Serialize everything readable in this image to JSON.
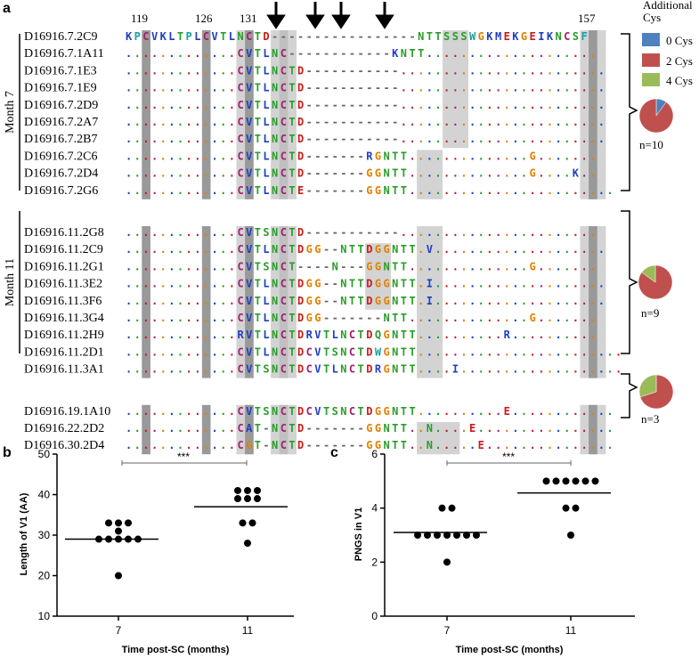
{
  "panel_labels": {
    "a": "a",
    "b": "b",
    "c": "c"
  },
  "positions": [
    "119",
    "126",
    "131",
    "157"
  ],
  "legend": {
    "title_line1": "Additional",
    "title_line2": "Cys",
    "items": [
      {
        "label": "0 Cys",
        "color": "#4f81bd"
      },
      {
        "label": "2 Cys",
        "color": "#c0504d"
      },
      {
        "label": "4 Cys",
        "color": "#9bbb59"
      }
    ]
  },
  "groups": [
    {
      "label": "Month 7",
      "n_label": "n=10",
      "pie": [
        0.1,
        0.9,
        0.0
      ],
      "rows": [
        {
          "name": "D16916.7.2C9",
          "seq": "KPCVKLTPLCVTLNCTD-----------------NTTSSSWGKMEKGEIKNCSF"
        },
        {
          "name": "D16916.7.1A11",
          "seq": ".............CVTLNC------------KNTT...................."
        },
        {
          "name": "D16916.7.1E3",
          "seq": ".............CVTLNCTD-----------........................"
        },
        {
          "name": "D16916.7.1E9",
          "seq": ".............CVTLNCTD-----------........................"
        },
        {
          "name": "D16916.7.2D9",
          "seq": ".............CVTLNCTD-----------........................"
        },
        {
          "name": "D16916.7.2A7",
          "seq": ".............CVTLNCTD-----------........................"
        },
        {
          "name": "D16916.7.2B7",
          "seq": ".............CVTLNCTD-----------........................"
        },
        {
          "name": "D16916.7.2C6",
          "seq": ".............CVTLNCTD-------RGNTT..............G......."
        },
        {
          "name": "D16916.7.2D4",
          "seq": ".............CVTLNCTD-------GGNTT..............G....K.."
        },
        {
          "name": "D16916.7.2G6",
          "seq": ".............CVTLNCTE-------GGNTT........................"
        }
      ]
    },
    {
      "label": "Month 11",
      "n_label": "n=9",
      "pie": [
        0.0,
        0.85,
        0.15
      ],
      "rows": [
        {
          "name": "D16916.11.2G8",
          "seq": ".............CVTSNCTD-----------......................."
        },
        {
          "name": "D16916.11.2C9",
          "seq": ".............CVTLNCTDGG--NTTDGGNTT.V...................."
        },
        {
          "name": "D16916.11.2G1",
          "seq": ".............CVTSNCT----N---GGNTT..............G......."
        },
        {
          "name": "D16916.11.3E2",
          "seq": ".............CVTLNCTDGG--NTTDGGNTT.I...................."
        },
        {
          "name": "D16916.11.3F6",
          "seq": ".............CVTLNCTDGG--NTTDGGNTT.I...................."
        },
        {
          "name": "D16916.11.3G4",
          "seq": ".............CVTLNCTDGG-------NTT..............G......."
        },
        {
          "name": "D16916.11.2H9",
          "seq": ".............RVTLNCTDRVTLNCTDQGNTT..........R.........."
        },
        {
          "name": "D16916.11.2D1",
          "seq": ".............CVTLNCTDCVTSNCTDWGNTT........................"
        },
        {
          "name": "D16916.11.3A1",
          "seq": ".............CVTSNCTDCVTLNCTDRGNTT....I..................."
        }
      ]
    },
    {
      "label": "",
      "n_label": "n=3",
      "pie": [
        0.0,
        0.7,
        0.3
      ],
      "rows": [
        {
          "name": "D16916.19.1A10",
          "seq": ".............CVTSNCTDCVTSNCTDGGNTT..........E............"
        },
        {
          "name": "D16916.22.2D2",
          "seq": ".............CAT-NCTD-------GGNTT..N....E................"
        },
        {
          "name": "D16916.30.2D4",
          "seq": ".............CGT-NCTD-------GGNTT..N.....E..............."
        }
      ]
    }
  ],
  "chart_data": [
    {
      "type": "scatter",
      "panel": "b",
      "ylabel": "Length of V1 (AA)",
      "xlabel": "Time post-SC (months)",
      "categories": [
        "7",
        "11"
      ],
      "ylim": [
        10,
        50
      ],
      "yticks": [
        "10",
        "20",
        "30",
        "40",
        "50"
      ],
      "series": [
        {
          "name": "7",
          "values": [
            33,
            33,
            33,
            31,
            29,
            29,
            29,
            29,
            29,
            20
          ],
          "mean": 29
        },
        {
          "name": "11",
          "values": [
            41,
            41,
            41,
            39,
            39,
            39,
            33,
            33,
            28
          ],
          "mean": 37
        }
      ],
      "significance": "***"
    },
    {
      "type": "scatter",
      "panel": "c",
      "ylabel": "PNGS in V1",
      "xlabel": "Time post-SC (months)",
      "categories": [
        "7",
        "11"
      ],
      "ylim": [
        0,
        6
      ],
      "yticks": [
        "0",
        "2",
        "4",
        "6"
      ],
      "series": [
        {
          "name": "7",
          "values": [
            4,
            4,
            3,
            3,
            3,
            3,
            3,
            3,
            3,
            2
          ],
          "mean": 3.1
        },
        {
          "name": "11",
          "values": [
            5,
            5,
            5,
            5,
            5,
            5,
            4,
            4,
            3
          ],
          "mean": 4.56
        }
      ],
      "significance": "***"
    }
  ]
}
